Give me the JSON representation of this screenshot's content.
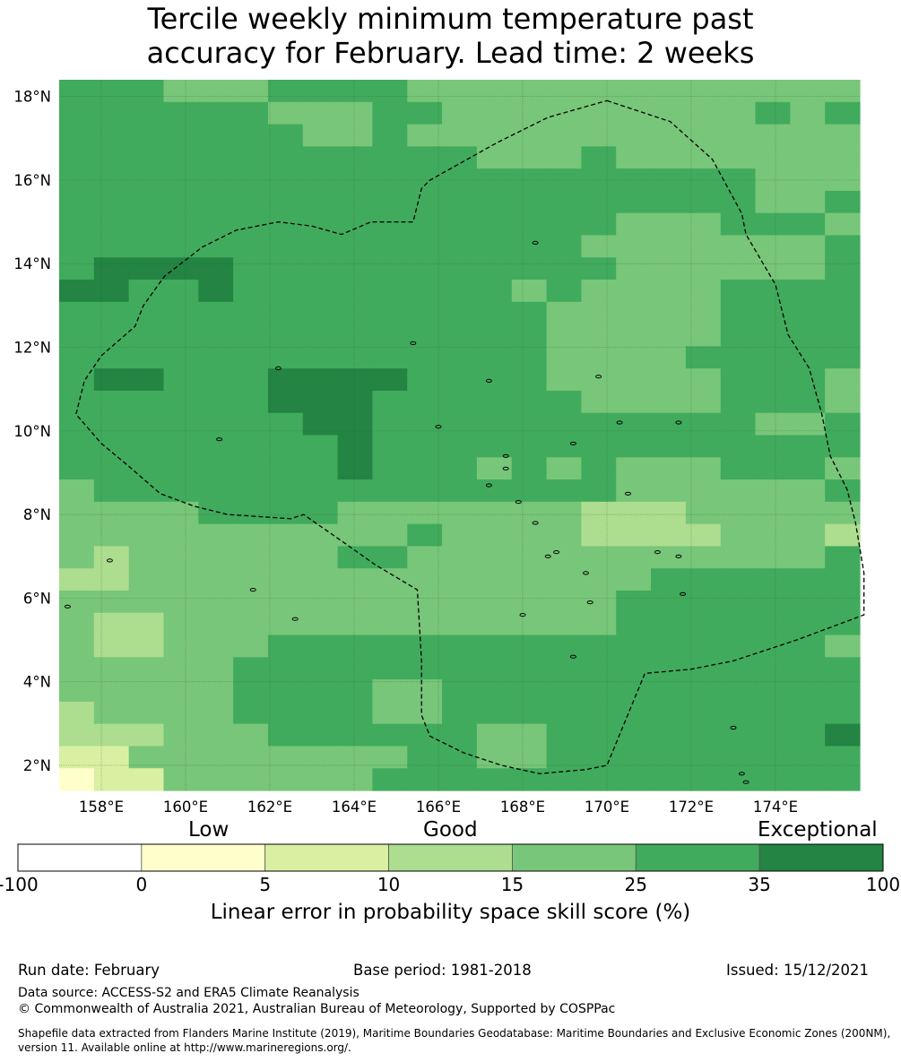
{
  "title_line1": "Tercile weekly minimum temperature past",
  "title_line2": "accuracy for February. Lead time: 2 weeks",
  "map": {
    "lon_range": [
      157,
      176
    ],
    "lat_range": [
      1.4,
      18.4
    ],
    "x_ticks": [
      {
        "value": 158,
        "label": "158°E"
      },
      {
        "value": 160,
        "label": "160°E"
      },
      {
        "value": 162,
        "label": "162°E"
      },
      {
        "value": 164,
        "label": "164°E"
      },
      {
        "value": 166,
        "label": "166°E"
      },
      {
        "value": 168,
        "label": "168°E"
      },
      {
        "value": 170,
        "label": "170°E"
      },
      {
        "value": 172,
        "label": "172°E"
      },
      {
        "value": 174,
        "label": "174°E"
      }
    ],
    "y_ticks": [
      {
        "value": 18,
        "label": "18°N"
      },
      {
        "value": 16,
        "label": "16°N"
      },
      {
        "value": 14,
        "label": "14°N"
      },
      {
        "value": 12,
        "label": "12°N"
      },
      {
        "value": 10,
        "label": "10°N"
      },
      {
        "value": 8,
        "label": "8°N"
      },
      {
        "value": 6,
        "label": "6°N"
      },
      {
        "value": 4,
        "label": "4°N"
      },
      {
        "value": 2,
        "label": "2°N"
      }
    ],
    "eez_boundary": [
      [
        170.0,
        17.9
      ],
      [
        171.5,
        17.4
      ],
      [
        172.5,
        16.5
      ],
      [
        173.2,
        15.2
      ],
      [
        173.3,
        14.7
      ],
      [
        174.0,
        13.5
      ],
      [
        174.3,
        12.3
      ],
      [
        174.8,
        11.5
      ],
      [
        175.1,
        10.4
      ],
      [
        175.3,
        9.4
      ],
      [
        175.7,
        8.6
      ],
      [
        175.9,
        7.8
      ],
      [
        176.1,
        6.6
      ],
      [
        176.1,
        5.6
      ],
      [
        174.5,
        5.0
      ],
      [
        173.0,
        4.5
      ],
      [
        172.0,
        4.3
      ],
      [
        170.9,
        4.2
      ],
      [
        170.0,
        2.0
      ],
      [
        169.5,
        1.9
      ],
      [
        168.4,
        1.8
      ],
      [
        167.5,
        2.0
      ],
      [
        166.6,
        2.3
      ],
      [
        165.8,
        2.7
      ],
      [
        165.6,
        3.2
      ],
      [
        165.6,
        4.5
      ],
      [
        165.5,
        6.2
      ],
      [
        164.5,
        6.8
      ],
      [
        163.8,
        7.3
      ],
      [
        162.8,
        8.0
      ],
      [
        162.5,
        7.9
      ],
      [
        161.0,
        8.0
      ],
      [
        160.2,
        8.2
      ],
      [
        159.4,
        8.5
      ],
      [
        158.6,
        9.2
      ],
      [
        158.0,
        9.7
      ],
      [
        157.4,
        10.4
      ],
      [
        157.6,
        11.2
      ],
      [
        158.0,
        11.8
      ],
      [
        158.8,
        12.5
      ],
      [
        159.0,
        13.0
      ],
      [
        159.5,
        13.7
      ],
      [
        160.4,
        14.4
      ],
      [
        161.2,
        14.8
      ],
      [
        162.2,
        15.0
      ],
      [
        163.0,
        14.9
      ],
      [
        163.7,
        14.7
      ],
      [
        164.4,
        15.0
      ],
      [
        165.4,
        15.0
      ],
      [
        165.6,
        15.8
      ],
      [
        165.8,
        16.0
      ],
      [
        167.4,
        16.9
      ],
      [
        168.6,
        17.5
      ],
      [
        170.0,
        17.9
      ]
    ]
  },
  "colorbar": {
    "category_low": "Low",
    "category_good": "Good",
    "category_exceptional": "Exceptional",
    "ticks": [
      "-100",
      "0",
      "5",
      "10",
      "15",
      "25",
      "35",
      "100"
    ],
    "colors": [
      "#ffffff",
      "#ffffcc",
      "#d9f0a3",
      "#addd8e",
      "#78c679",
      "#41ab5d",
      "#238443"
    ],
    "label": "Linear error in probability space skill score (%)"
  },
  "footer": {
    "run_date": "Run date: February",
    "base_period": "Base period: 1981-2018",
    "issued": "Issued: 15/12/2021",
    "data_source": "Data source: ACCESS-S2 and ERA5 Climate Reanalysis",
    "copyright": "© Commonwealth of Australia 2021, Australian Bureau of Meteorology, Supported by COSPPac",
    "shapefile": "Shapefile data extracted from Flanders Marine Institute (2019), Maritime Boundaries Geodatabase: Maritime Boundaries and Exclusive Economic Zones (200NM), version 11. Available online at http://www.marineregions.org/."
  }
}
